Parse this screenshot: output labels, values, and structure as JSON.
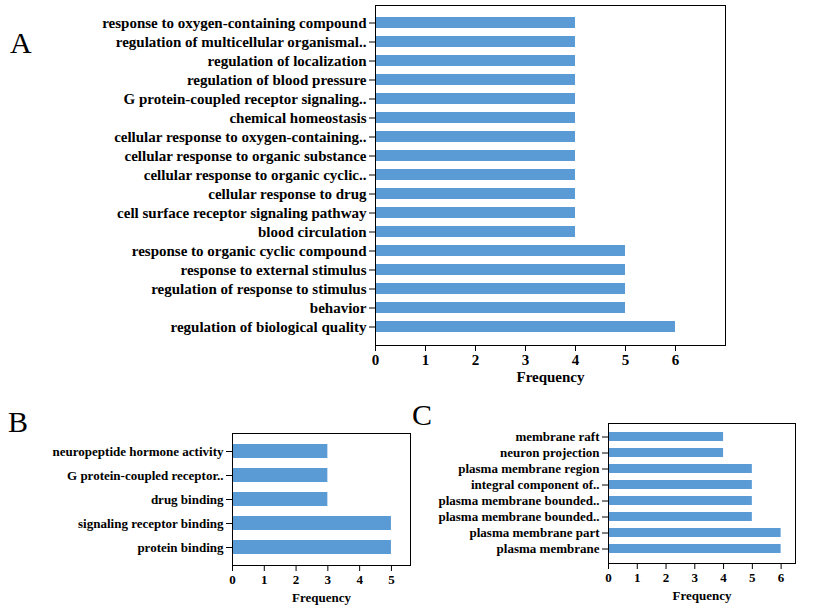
{
  "chart_data": [
    {
      "type": "bar",
      "title": "A",
      "orientation": "horizontal",
      "grid": false,
      "color": "#5b9bd5",
      "xlabel": "Frequency",
      "xlim": [
        0,
        7
      ],
      "xticks": [
        0,
        1,
        2,
        3,
        4,
        5,
        6
      ],
      "categories": [
        "response to oxygen-containing compound",
        "regulation of multicellular organismal..",
        "regulation of localization",
        "regulation of blood pressure",
        "G protein-coupled receptor signaling..",
        "chemical homeostasis",
        "cellular response to oxygen-containing..",
        "cellular response to organic substance",
        "cellular response to organic cyclic..",
        "cellular response to drug",
        "cell surface receptor signaling pathway",
        "blood circulation",
        "response to organic cyclic compound",
        "response to external stimulus",
        "regulation of response to stimulus",
        "behavior",
        "regulation of biological quality"
      ],
      "values": [
        4,
        4,
        4,
        4,
        4,
        4,
        4,
        4,
        4,
        4,
        4,
        4,
        5,
        5,
        5,
        5,
        6
      ]
    },
    {
      "type": "bar",
      "title": "B",
      "orientation": "horizontal",
      "grid": false,
      "color": "#5b9bd5",
      "xlabel": "Frequency",
      "xlim": [
        0,
        5.6
      ],
      "xticks": [
        0,
        1,
        2,
        3,
        4,
        5
      ],
      "categories": [
        "neuropeptide hormone activity",
        "G protein-coupled receptor..",
        "drug binding",
        "signaling receptor binding",
        "protein binding"
      ],
      "values": [
        3,
        3,
        3,
        5,
        5
      ]
    },
    {
      "type": "bar",
      "title": "C",
      "orientation": "horizontal",
      "grid": false,
      "color": "#5b9bd5",
      "xlabel": "Frequency",
      "xlim": [
        0,
        6.5
      ],
      "xticks": [
        0,
        1,
        2,
        3,
        4,
        5,
        6
      ],
      "categories": [
        "membrane raft",
        "neuron projection",
        "plasma membrane region",
        "integral component of..",
        "plasma membrane bounded..",
        "plasma membrane bounded..",
        "plasma membrane part",
        "plasma membrane"
      ],
      "values": [
        4,
        4,
        5,
        5,
        5,
        5,
        6,
        6
      ]
    }
  ]
}
